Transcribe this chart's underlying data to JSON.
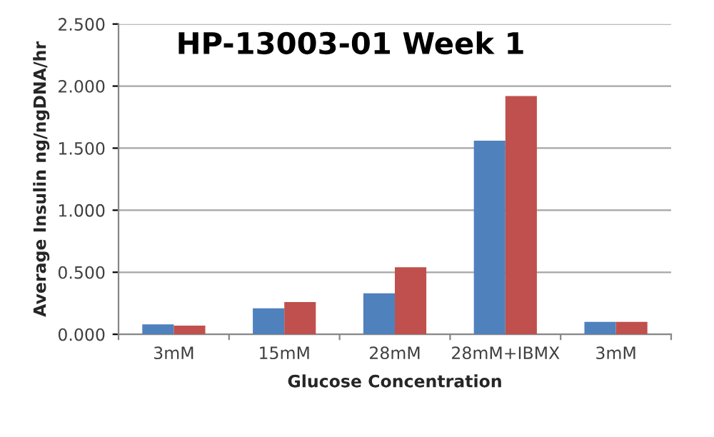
{
  "chart_data": {
    "type": "bar",
    "title": "HP-13003-01 Week 1",
    "xlabel": "Glucose Concentration",
    "ylabel": "Average Insulin ng/ngDNA/hr",
    "categories": [
      "3mM",
      "15mM",
      "28mM",
      "28mM+IBMX",
      "3mM"
    ],
    "series": [
      {
        "color": "#4f81bd",
        "values": [
          0.08,
          0.21,
          0.33,
          1.56,
          0.1
        ]
      },
      {
        "color": "#c0504d",
        "values": [
          0.07,
          0.26,
          0.54,
          1.92,
          0.1
        ]
      }
    ],
    "ylim": [
      0,
      2.5
    ],
    "yticks": [
      {
        "value": 0,
        "label": "0.000"
      },
      {
        "value": 0.5,
        "label": "0.500"
      },
      {
        "value": 1,
        "label": "1.000"
      },
      {
        "value": 1.5,
        "label": "1.500"
      },
      {
        "value": 2,
        "label": "2.000"
      },
      {
        "value": 2.5,
        "label": "2.500"
      }
    ],
    "grid": "y",
    "legend": false
  }
}
